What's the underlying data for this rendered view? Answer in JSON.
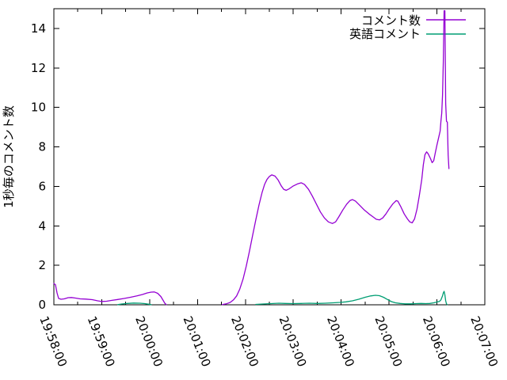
{
  "chart_data": {
    "type": "line",
    "title": "",
    "ylabel": "1秒毎のコメント数",
    "xlabel": "",
    "ylim": [
      0,
      15
    ],
    "y_ticks": [
      0,
      2,
      4,
      6,
      8,
      10,
      12,
      14
    ],
    "x_tick_labels": [
      "19:58:00",
      "19:59:00",
      "20:00:00",
      "20:01:00",
      "20:02:00",
      "20:03:00",
      "20:04:00",
      "20:05:00",
      "20:06:00",
      "20:07:00"
    ],
    "x_major_interval_seconds": 60,
    "x_minor_interval_seconds": 30,
    "x_range_seconds": [
      0,
      540
    ],
    "grid": false,
    "legend_position": "top-right-inside",
    "series": [
      {
        "name": "コメント数",
        "color": "#9400d3",
        "segments": [
          [
            [
              0,
              1.08
            ],
            [
              2,
              1.02
            ],
            [
              4,
              0.6
            ],
            [
              6,
              0.32
            ],
            [
              9,
              0.28
            ],
            [
              13,
              0.3
            ],
            [
              18,
              0.36
            ],
            [
              22,
              0.37
            ],
            [
              27,
              0.34
            ],
            [
              33,
              0.3
            ],
            [
              40,
              0.29
            ],
            [
              48,
              0.26
            ],
            [
              55,
              0.2
            ],
            [
              60,
              0.17
            ],
            [
              66,
              0.18
            ],
            [
              72,
              0.22
            ],
            [
              80,
              0.27
            ],
            [
              88,
              0.32
            ],
            [
              96,
              0.38
            ],
            [
              104,
              0.45
            ],
            [
              111,
              0.52
            ],
            [
              117,
              0.6
            ],
            [
              122,
              0.64
            ],
            [
              126,
              0.65
            ],
            [
              130,
              0.58
            ],
            [
              134,
              0.42
            ],
            [
              137,
              0.22
            ],
            [
              139,
              0.08
            ],
            [
              141,
              0.01
            ]
          ],
          [
            [
              211,
              0.01
            ],
            [
              216,
              0.05
            ],
            [
              221,
              0.12
            ],
            [
              225,
              0.25
            ],
            [
              229,
              0.45
            ],
            [
              233,
              0.8
            ],
            [
              237,
              1.3
            ],
            [
              241,
              1.95
            ],
            [
              245,
              2.7
            ],
            [
              249,
              3.5
            ],
            [
              253,
              4.3
            ],
            [
              257,
              5.05
            ],
            [
              261,
              5.7
            ],
            [
              264,
              6.1
            ],
            [
              267,
              6.35
            ],
            [
              270,
              6.5
            ],
            [
              273,
              6.58
            ],
            [
              277,
              6.52
            ],
            [
              281,
              6.32
            ],
            [
              285,
              6.02
            ],
            [
              288,
              5.85
            ],
            [
              291,
              5.8
            ],
            [
              295,
              5.88
            ],
            [
              300,
              6.02
            ],
            [
              305,
              6.12
            ],
            [
              310,
              6.18
            ],
            [
              314,
              6.1
            ],
            [
              319,
              5.85
            ],
            [
              324,
              5.5
            ],
            [
              329,
              5.1
            ],
            [
              334,
              4.7
            ],
            [
              339,
              4.4
            ],
            [
              344,
              4.2
            ],
            [
              349,
              4.12
            ],
            [
              353,
              4.2
            ],
            [
              357,
              4.45
            ],
            [
              362,
              4.8
            ],
            [
              367,
              5.1
            ],
            [
              371,
              5.28
            ],
            [
              374,
              5.33
            ],
            [
              378,
              5.25
            ],
            [
              383,
              5.05
            ],
            [
              389,
              4.8
            ],
            [
              395,
              4.6
            ],
            [
              400,
              4.45
            ],
            [
              404,
              4.33
            ],
            [
              408,
              4.3
            ],
            [
              412,
              4.4
            ],
            [
              416,
              4.6
            ],
            [
              420,
              4.85
            ],
            [
              425,
              5.12
            ],
            [
              429,
              5.28
            ],
            [
              431,
              5.25
            ],
            [
              435,
              4.95
            ],
            [
              439,
              4.6
            ],
            [
              443,
              4.35
            ],
            [
              446,
              4.2
            ],
            [
              449,
              4.15
            ],
            [
              452,
              4.35
            ],
            [
              455,
              4.85
            ],
            [
              458,
              5.55
            ],
            [
              461,
              6.35
            ],
            [
              463,
              7.1
            ],
            [
              465,
              7.6
            ],
            [
              467,
              7.75
            ],
            [
              469,
              7.65
            ],
            [
              472,
              7.4
            ],
            [
              474,
              7.2
            ],
            [
              476,
              7.3
            ],
            [
              478,
              7.7
            ],
            [
              480,
              8.1
            ],
            [
              482,
              8.45
            ],
            [
              484,
              8.8
            ],
            [
              485,
              9.3
            ],
            [
              486,
              9.7
            ],
            [
              487,
              10.6
            ],
            [
              488,
              12.3
            ],
            [
              489,
              14.9
            ],
            [
              490,
              14.9
            ],
            [
              491,
              10.2
            ],
            [
              492,
              9.3
            ],
            [
              493,
              9.25
            ],
            [
              494,
              7.6
            ],
            [
              495,
              6.9
            ]
          ]
        ]
      },
      {
        "name": "英語コメント",
        "color": "#009e73",
        "segments": [
          [
            [
              80,
              0.01
            ],
            [
              85,
              0.04
            ],
            [
              92,
              0.07
            ],
            [
              100,
              0.09
            ],
            [
              108,
              0.08
            ],
            [
              114,
              0.06
            ],
            [
              119,
              0.03
            ],
            [
              122,
              0.01
            ]
          ],
          [
            [
              253,
              0.02
            ],
            [
              262,
              0.04
            ],
            [
              272,
              0.06
            ],
            [
              282,
              0.08
            ],
            [
              290,
              0.07
            ],
            [
              300,
              0.06
            ],
            [
              310,
              0.07
            ],
            [
              320,
              0.08
            ],
            [
              330,
              0.07
            ],
            [
              340,
              0.08
            ],
            [
              350,
              0.1
            ],
            [
              358,
              0.12
            ],
            [
              366,
              0.15
            ],
            [
              374,
              0.2
            ],
            [
              382,
              0.28
            ],
            [
              390,
              0.38
            ],
            [
              397,
              0.45
            ],
            [
              403,
              0.48
            ],
            [
              408,
              0.46
            ],
            [
              413,
              0.38
            ],
            [
              418,
              0.27
            ],
            [
              423,
              0.16
            ],
            [
              428,
              0.1
            ],
            [
              434,
              0.07
            ],
            [
              440,
              0.05
            ],
            [
              447,
              0.05
            ],
            [
              454,
              0.06
            ],
            [
              460,
              0.07
            ],
            [
              466,
              0.06
            ],
            [
              471,
              0.07
            ],
            [
              476,
              0.1
            ],
            [
              480,
              0.14
            ],
            [
              483,
              0.17
            ],
            [
              485,
              0.25
            ],
            [
              487,
              0.45
            ],
            [
              488,
              0.6
            ],
            [
              489,
              0.68
            ],
            [
              490,
              0.5
            ],
            [
              491,
              0.2
            ],
            [
              492,
              0.05
            ],
            [
              493,
              0.01
            ]
          ]
        ]
      }
    ]
  },
  "colors": {
    "series1": "#9400d3",
    "series2": "#009e73",
    "axis": "#000000",
    "background": "#ffffff"
  }
}
